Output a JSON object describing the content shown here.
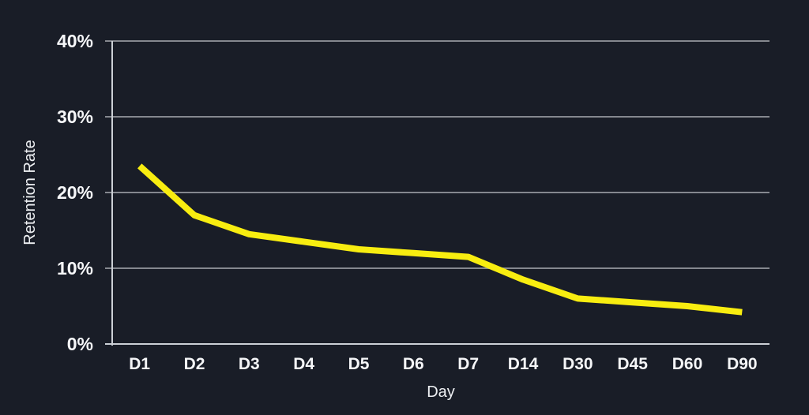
{
  "chart_data": {
    "type": "line",
    "categories": [
      "D1",
      "D2",
      "D3",
      "D4",
      "D5",
      "D6",
      "D7",
      "D14",
      "D30",
      "D45",
      "D60",
      "D90"
    ],
    "series": [
      {
        "name": "Retention Rate",
        "values": [
          23.5,
          17,
          14.5,
          13.5,
          12.5,
          12,
          11.5,
          8.5,
          6,
          5.5,
          5,
          4.2
        ],
        "color": "#f8ed10"
      }
    ],
    "xlabel": "Day",
    "ylabel": "Retention Rate",
    "ylim": [
      0,
      40
    ],
    "yticks": [
      0,
      10,
      20,
      30,
      40
    ],
    "ytick_labels": [
      "0%",
      "10%",
      "20%",
      "30%",
      "40%"
    ],
    "grid": true,
    "legend": false
  },
  "colors": {
    "background": "#191d27",
    "line": "#f8ed10",
    "gridline": "#85888f",
    "axis": "#ccd0d6",
    "text": "#f5f6f8"
  }
}
